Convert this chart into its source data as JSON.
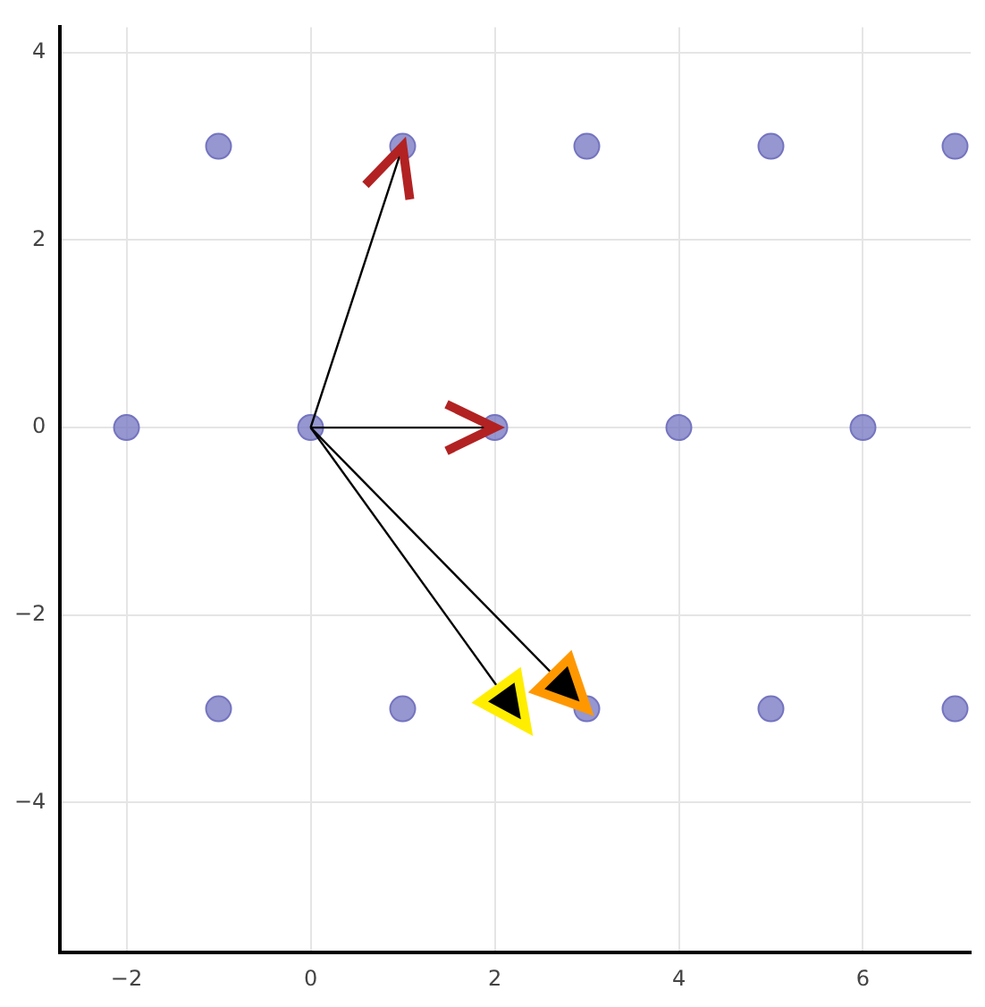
{
  "chart_data": {
    "type": "scatter",
    "x": [
      -1,
      1,
      3,
      5,
      7,
      -2,
      0,
      2,
      4,
      6,
      -1,
      1,
      3,
      5,
      7
    ],
    "values": [
      3,
      3,
      3,
      3,
      3,
      0,
      0,
      0,
      0,
      0,
      -3,
      -3,
      -3,
      -3,
      -3
    ],
    "color": "#7474c0",
    "xlim": [
      -2.72,
      7.17
    ],
    "ylim": [
      -5.6,
      4.27
    ],
    "xticks": [
      -2,
      0,
      2,
      4,
      6
    ],
    "yticks": [
      -4,
      -2,
      0,
      2,
      4
    ],
    "grid": true,
    "marker": "circle"
  }
}
